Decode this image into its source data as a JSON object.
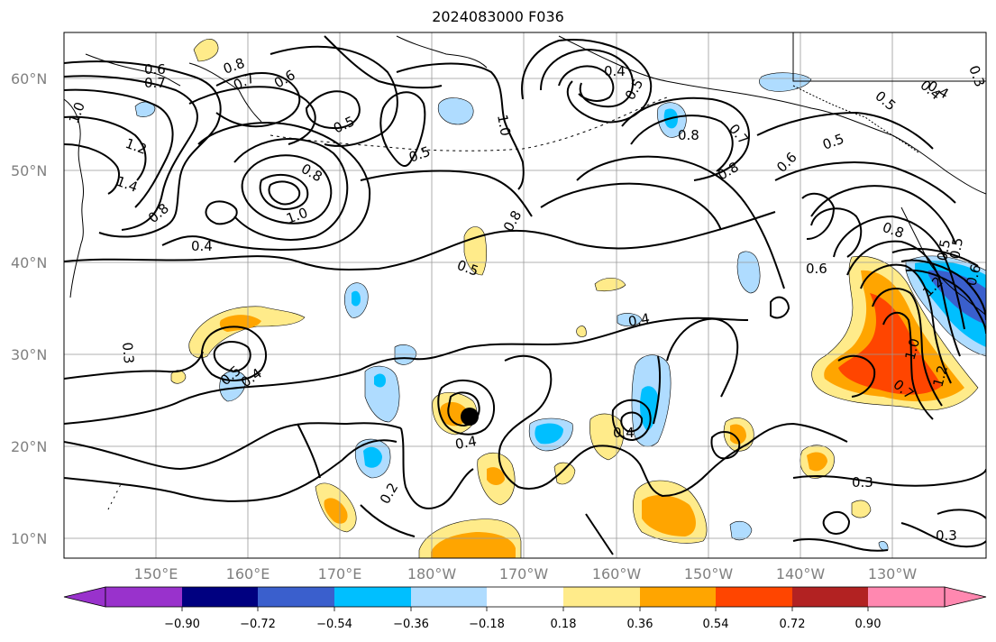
{
  "title": "2024083000 F036",
  "lat_labels": [
    "60°N",
    "50°N",
    "40°N",
    "30°N",
    "20°N",
    "10°N"
  ],
  "lon_labels": [
    "150°E",
    "160°E",
    "170°E",
    "180°W",
    "170°W",
    "160°W",
    "150°W",
    "140°W",
    "130°W"
  ],
  "colorbar": {
    "ticks": [
      "−0.90",
      "−0.72",
      "−0.54",
      "−0.36",
      "−0.18",
      "0.18",
      "0.36",
      "0.54",
      "0.72",
      "0.90"
    ],
    "colors": [
      "#9932cc",
      "#000080",
      "#3a5fcd",
      "#00bfff",
      "#afdcff",
      "#ffffff",
      "#ffeb8a",
      "#ffa500",
      "#ff4500",
      "#b22222",
      "#ff88b0"
    ]
  },
  "contour_labels": [
    "0.6",
    "0.7",
    "0.8",
    "0.7",
    "0.6",
    "0.5",
    "0.4",
    "0.5",
    "0.5",
    "1.0",
    "0.4",
    "0.5",
    "0.8",
    "0.7",
    "0.8",
    "0.6",
    "0.5",
    "0.5",
    "0.4",
    "0.3",
    "1.0",
    "1.2",
    "1.4",
    "0.8",
    "0.8",
    "1.0",
    "0.4",
    "0.5",
    "0.8",
    "0.8",
    "0.6",
    "1.2",
    "1.0",
    "0.7",
    "1.2",
    "0.6",
    "0.4",
    "0.3",
    "0.5",
    "0.4",
    "0.4",
    "0.4",
    "0.2",
    "0.3",
    "0.3",
    "0.5"
  ],
  "marker": "storm-center"
}
